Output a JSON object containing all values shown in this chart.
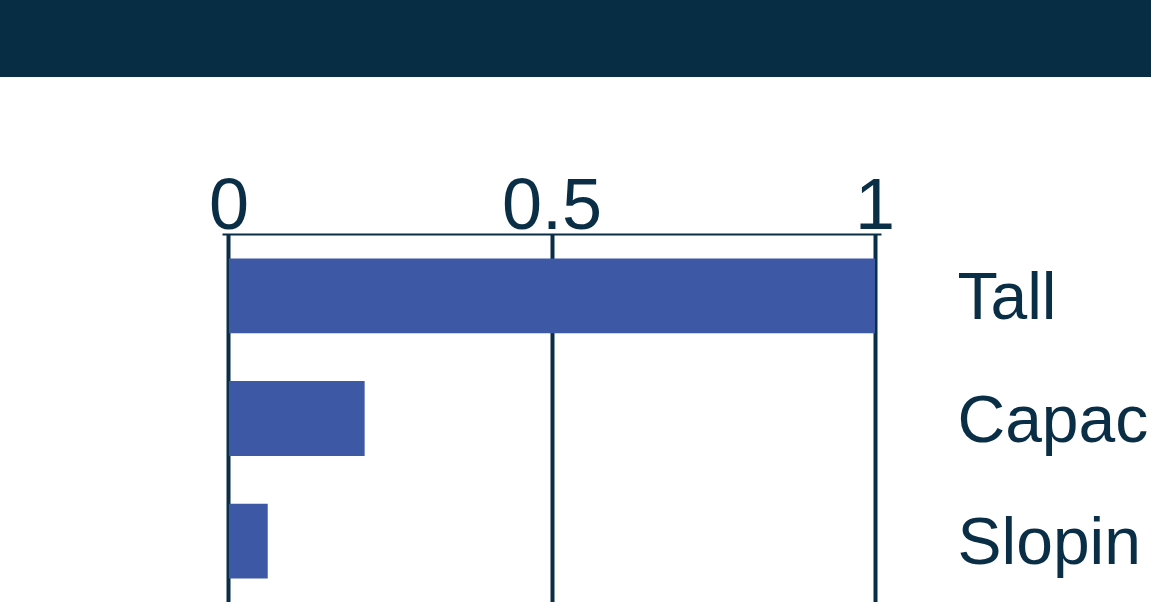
{
  "chart_data": {
    "type": "bar",
    "orientation": "horizontal",
    "categories": [
      "Tall",
      "Capac",
      "Slopin"
    ],
    "values": [
      1,
      0.21,
      0.06
    ],
    "color": "#3d59a5",
    "xlim": [
      -0.01,
      1.01
    ],
    "xticks": [
      0,
      0.5,
      1
    ],
    "grid": "x"
  }
}
